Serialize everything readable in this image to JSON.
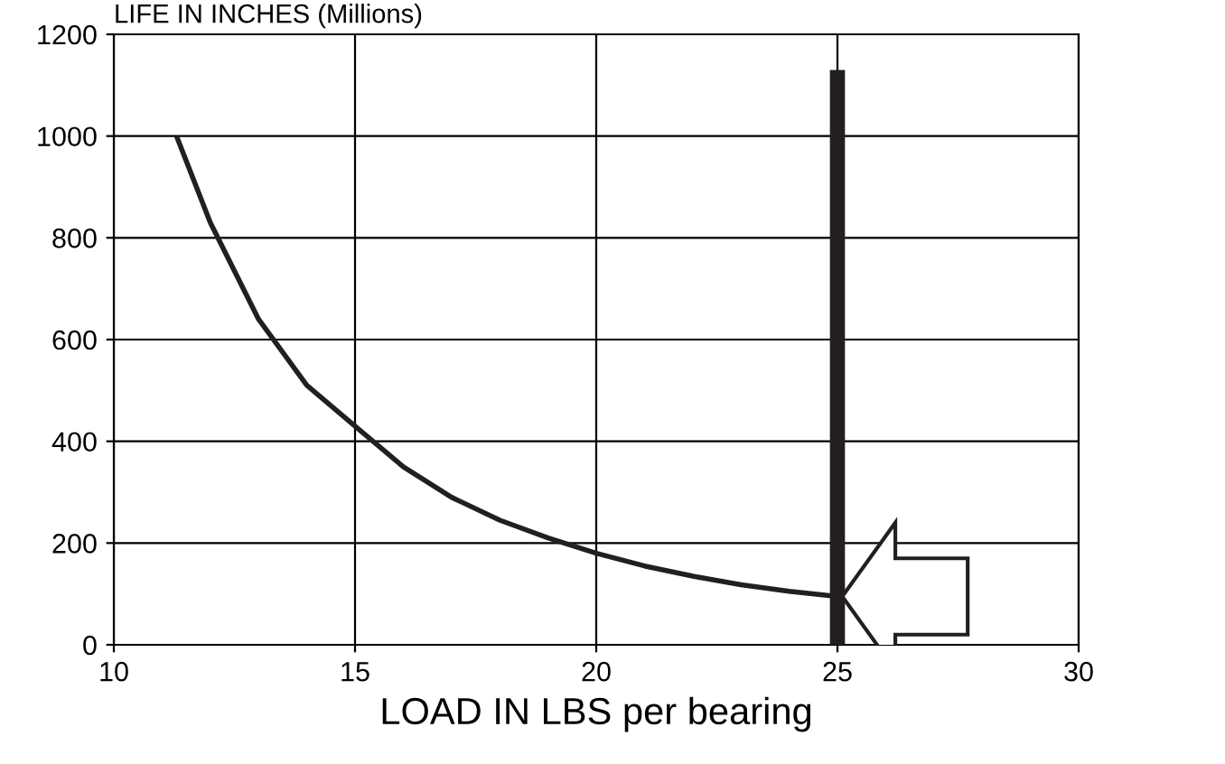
{
  "chart_data": {
    "type": "line",
    "xlabel": "LOAD IN LBS per bearing",
    "ylabel": "LIFE IN INCHES (Millions)",
    "series": [
      {
        "color": "#231f20",
        "x": [
          11.3,
          12,
          13,
          14,
          15,
          16,
          17,
          18,
          19,
          20,
          21,
          22,
          23,
          24,
          25
        ],
        "values": [
          1000,
          830,
          640,
          510,
          430,
          350,
          290,
          245,
          210,
          180,
          155,
          135,
          118,
          105,
          95
        ]
      },
      {
        "color": "#231f20",
        "x": [
          25,
          25
        ],
        "values": [
          0,
          1130
        ]
      }
    ],
    "xlim": [
      10,
      30
    ],
    "xticks": [
      10,
      15,
      20,
      25,
      30
    ],
    "ylim": [
      0,
      1200
    ],
    "yticks": [
      0,
      200,
      400,
      600,
      800,
      1000,
      1200
    ],
    "grid": true,
    "marker": "none",
    "line_style": "solid"
  }
}
